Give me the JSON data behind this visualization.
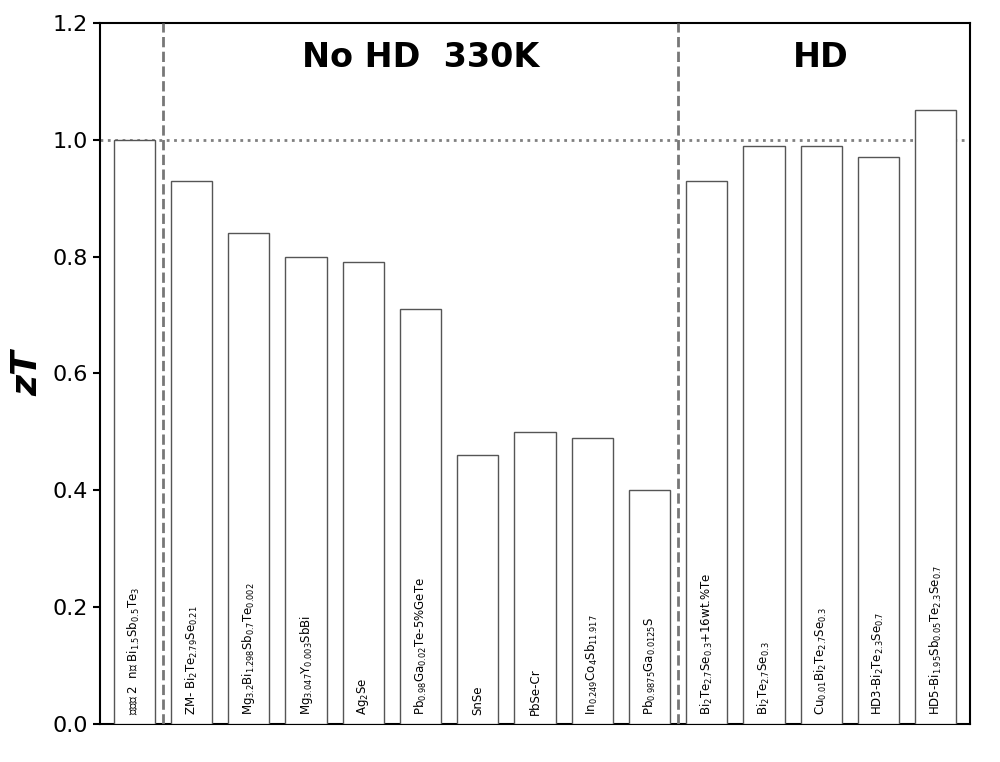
{
  "categories_plain": [
    "实施例 2  n型 Bi$_{1.5}$Sb$_{0.5}$Te$_3$",
    "ZM- Bi$_2$Te$_{2.79}$Se$_{0.21}$",
    "Mg$_{3.2}$Bi$_{1.298}$Sb$_{0.7}$Te$_{0.002}$",
    "Mg$_{3.047}$Y$_{0.003}$SbBi",
    "Ag$_2$Se",
    "Pb$_{0.98}$Ga$_{0.02}$Te-5%GeTe",
    "SnSe",
    "PbSe-Cr",
    "In$_{0.249}$Co$_4$Sb$_{11.917}$",
    "Pb$_{0.9875}$Ga$_{0.0125}$S",
    "Bi$_2$Te$_{2.7}$Se$_{0.3}$+16wt.%Te",
    "Bi$_2$Te$_{2.7}$Se$_{0.3}$",
    "Cu$_{0.01}$Bi$_2$Te$_{2.7}$Se$_{0.3}$",
    "HD3-Bi$_2$Te$_{2.3}$Se$_{0.7}$",
    "HD5-Bi$_{1.95}$Sb$_{0.05}$Te$_{2.3}$Se$_{0.7}$"
  ],
  "values": [
    1.0,
    0.93,
    0.84,
    0.8,
    0.79,
    0.71,
    0.46,
    0.5,
    0.49,
    0.4,
    0.93,
    0.99,
    0.99,
    0.97,
    1.05
  ],
  "bar_color": "white",
  "bar_edgecolor": "#555555",
  "ylabel": "zT",
  "ylim": [
    0.0,
    1.2
  ],
  "yticks": [
    0.0,
    0.2,
    0.4,
    0.6,
    0.8,
    1.0,
    1.2
  ],
  "dotted_line_y": 1.0,
  "section_label_NoHD": "No HD  330K",
  "section_label_HD": "HD",
  "background_color": "white",
  "figsize": [
    10.0,
    7.62
  ],
  "dpi": 100,
  "label_fontsize": 8.5,
  "ylabel_fontsize": 26,
  "ytick_fontsize": 16,
  "section_fontsize": 24
}
